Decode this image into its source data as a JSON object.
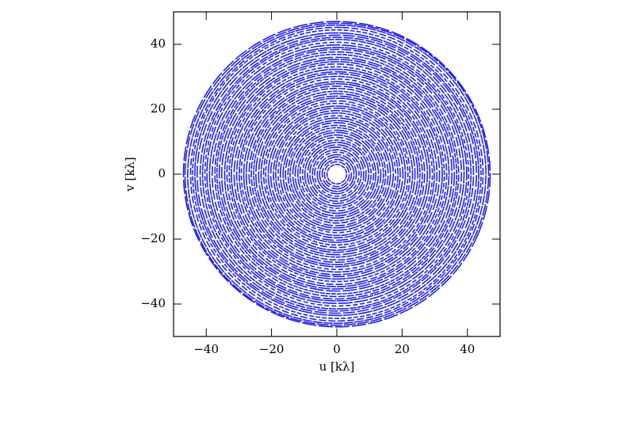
{
  "chart_data": {
    "type": "uv-tracks",
    "xlabel": "u [kλ]",
    "ylabel": "v [kλ]",
    "xlim": [
      -50,
      50
    ],
    "ylim": [
      -50,
      50
    ],
    "xticks": [
      {
        "value": -40,
        "label": "−40"
      },
      {
        "value": -20,
        "label": "−20"
      },
      0,
      20,
      40
    ],
    "yticks": [
      {
        "value": -40,
        "label": "−40"
      },
      {
        "value": -20,
        "label": "−20"
      },
      0,
      20,
      40
    ],
    "color": "#2020e8",
    "radii": [
      3.0,
      3.8,
      4.5,
      5.3,
      6.0,
      6.8,
      7.5,
      8.3,
      9.0,
      9.8,
      10.5,
      11.3,
      12.0,
      12.8,
      13.5,
      14.3,
      15.0,
      15.8,
      16.5,
      17.3,
      18.0,
      18.8,
      19.5,
      20.3,
      21.0,
      21.8,
      22.5,
      23.3,
      24.0,
      24.8,
      25.5,
      26.3,
      27.0,
      27.8,
      28.5,
      29.3,
      30.0,
      30.8,
      31.5,
      32.3,
      33.0,
      33.8,
      34.5,
      35.3,
      36.0,
      36.8,
      37.5,
      38.3,
      39.0,
      39.8,
      40.5,
      41.3,
      42.0,
      42.8,
      43.5,
      44.3,
      45.0,
      45.8,
      46.5,
      47.0
    ]
  }
}
